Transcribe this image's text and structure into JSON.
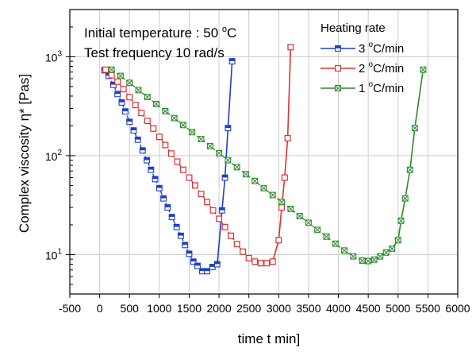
{
  "chart_data": {
    "type": "line",
    "title": "",
    "xlabel": "time t min]",
    "ylabel": "Complex viscosity η* [Pas]",
    "xlim": [
      -500,
      6000
    ],
    "ylim": [
      4,
      3000
    ],
    "yscale": "log",
    "grid": true,
    "x_ticks": [
      -500,
      0,
      500,
      1000,
      1500,
      2000,
      2500,
      3000,
      3500,
      4000,
      4500,
      5000,
      5500,
      6000
    ],
    "x_tick_labels": [
      "-500",
      "0",
      "500",
      "1000",
      "1500",
      "2000",
      "2500",
      "3000",
      "3500",
      "4000",
      "4500",
      "5000",
      "5500",
      "6000"
    ],
    "y_ticks": [
      10,
      100,
      1000
    ],
    "y_tick_labels": [
      {
        "base": "10",
        "exp": "1"
      },
      {
        "base": "10",
        "exp": "2"
      },
      {
        "base": "10",
        "exp": "3"
      }
    ],
    "annotations": [
      {
        "parts": [
          "Initial temperature : 50 ",
          "o",
          "C"
        ]
      },
      {
        "parts": [
          "Test frequency 10 rad/s"
        ]
      }
    ],
    "legend": {
      "title": "Heating rate",
      "placement": "top-right"
    },
    "series": [
      {
        "name_parts": [
          "3 ",
          "o",
          "C/min"
        ],
        "color": "#1f3fc8",
        "marker": "filled-square",
        "line_style": "dashed-then-solid",
        "points": [
          [
            80,
            730
          ],
          [
            150,
            640
          ],
          [
            230,
            520
          ],
          [
            300,
            420
          ],
          [
            370,
            345
          ],
          [
            430,
            280
          ],
          [
            500,
            220
          ],
          [
            570,
            180
          ],
          [
            640,
            145
          ],
          [
            720,
            113
          ],
          [
            790,
            90
          ],
          [
            860,
            72
          ],
          [
            930,
            58
          ],
          [
            1000,
            47
          ],
          [
            1070,
            37
          ],
          [
            1140,
            30
          ],
          [
            1210,
            24
          ],
          [
            1290,
            19
          ],
          [
            1360,
            15.5
          ],
          [
            1430,
            12.5
          ],
          [
            1500,
            10.2
          ],
          [
            1570,
            8.5
          ],
          [
            1640,
            7.7
          ],
          [
            1720,
            6.8
          ],
          [
            1800,
            6.8
          ],
          [
            1890,
            7.5
          ],
          [
            1970,
            8.0
          ],
          [
            2050,
            28.0
          ],
          [
            2100,
            60.0
          ],
          [
            2150,
            190.0
          ],
          [
            2220,
            900.0
          ]
        ]
      },
      {
        "name_parts": [
          "2 ",
          "o",
          "C/min"
        ],
        "color": "#e03030",
        "marker": "open-square",
        "line_style": "dashed-then-solid",
        "points": [
          [
            100,
            740
          ],
          [
            200,
            650
          ],
          [
            300,
            560
          ],
          [
            400,
            470
          ],
          [
            500,
            390
          ],
          [
            600,
            325
          ],
          [
            700,
            270
          ],
          [
            800,
            225
          ],
          [
            900,
            188
          ],
          [
            1000,
            155
          ],
          [
            1100,
            128
          ],
          [
            1200,
            105
          ],
          [
            1300,
            87
          ],
          [
            1400,
            72
          ],
          [
            1500,
            60
          ],
          [
            1600,
            50
          ],
          [
            1700,
            41
          ],
          [
            1800,
            34
          ],
          [
            1900,
            28
          ],
          [
            2000,
            23
          ],
          [
            2100,
            19
          ],
          [
            2200,
            15.5
          ],
          [
            2300,
            12.8
          ],
          [
            2400,
            10.7
          ],
          [
            2500,
            9.2
          ],
          [
            2600,
            8.5
          ],
          [
            2700,
            8.2
          ],
          [
            2800,
            8.2
          ],
          [
            2900,
            8.5
          ],
          [
            3000,
            14.0
          ],
          [
            3050,
            30.0
          ],
          [
            3100,
            60.0
          ],
          [
            3150,
            150.0
          ],
          [
            3200,
            1250.0
          ]
        ]
      },
      {
        "name_parts": [
          "1 ",
          "o",
          "C/min"
        ],
        "color": "#2a8a2a",
        "marker": "x-square",
        "line_style": "dashed-then-solid",
        "points": [
          [
            200,
            740
          ],
          [
            350,
            640
          ],
          [
            500,
            545
          ],
          [
            650,
            460
          ],
          [
            800,
            392
          ],
          [
            950,
            333
          ],
          [
            1100,
            282
          ],
          [
            1250,
            240
          ],
          [
            1400,
            204
          ],
          [
            1550,
            173
          ],
          [
            1700,
            147
          ],
          [
            1850,
            125
          ],
          [
            2000,
            106
          ],
          [
            2150,
            90
          ],
          [
            2300,
            76.5
          ],
          [
            2450,
            65
          ],
          [
            2600,
            55.5
          ],
          [
            2750,
            47
          ],
          [
            2900,
            40
          ],
          [
            3050,
            34
          ],
          [
            3200,
            29
          ],
          [
            3350,
            24.5
          ],
          [
            3500,
            21
          ],
          [
            3650,
            17.8
          ],
          [
            3800,
            15.2
          ],
          [
            3950,
            12.9
          ],
          [
            4100,
            11.0
          ],
          [
            4250,
            9.6
          ],
          [
            4400,
            8.7
          ],
          [
            4500,
            8.6
          ],
          [
            4600,
            8.9
          ],
          [
            4700,
            9.6
          ],
          [
            4800,
            10.5
          ],
          [
            4900,
            11.5
          ],
          [
            5000,
            14.0
          ],
          [
            5050,
            22.0
          ],
          [
            5120,
            37.0
          ],
          [
            5200,
            72.0
          ],
          [
            5280,
            190.0
          ],
          [
            5420,
            740.0
          ]
        ]
      }
    ]
  }
}
